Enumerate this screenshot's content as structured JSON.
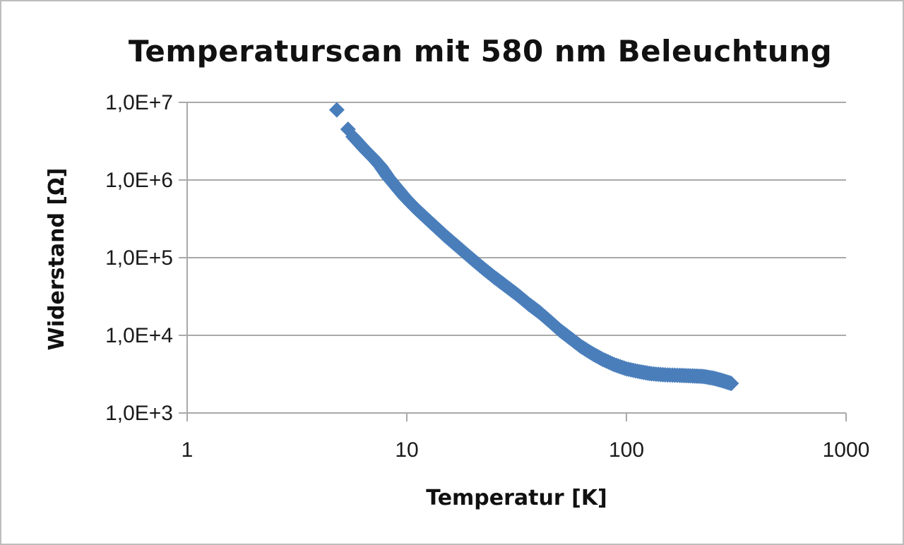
{
  "chart_data": {
    "type": "scatter",
    "title": "Temperaturscan  mit 580 nm Beleuchtung",
    "xlabel": "Temperatur [K]",
    "ylabel": "Widerstand [Ω]",
    "x_scale": "log",
    "y_scale": "log",
    "xlim": [
      1,
      1000
    ],
    "ylim": [
      1000,
      10000000
    ],
    "x_ticks": [
      1,
      10,
      100,
      1000
    ],
    "x_tick_labels": [
      "1",
      "10",
      "100",
      "1000"
    ],
    "y_ticks": [
      1000,
      10000,
      100000,
      1000000,
      10000000
    ],
    "y_tick_labels": [
      "1,0E+3",
      "1,0E+4",
      "1,0E+5",
      "1,0E+6",
      "1,0E+7"
    ],
    "grid": "horizontal",
    "legend": "none",
    "series": [
      {
        "color": "#4a7ebb",
        "marker": "diamond",
        "points": [
          [
            4.8,
            8000000
          ],
          [
            5.4,
            4500000
          ],
          [
            5.7,
            3600000
          ],
          [
            6.5,
            2400000
          ],
          [
            7.0,
            1950000
          ],
          [
            7.6,
            1500000
          ],
          [
            8.2,
            1100000
          ],
          [
            9.0,
            800000
          ],
          [
            9.8,
            600000
          ],
          [
            10.8,
            450000
          ],
          [
            12.0,
            340000
          ],
          [
            13.5,
            250000
          ],
          [
            15.0,
            190000
          ],
          [
            17.0,
            140000
          ],
          [
            19.5,
            100000
          ],
          [
            22.0,
            75000
          ],
          [
            25.0,
            56000
          ],
          [
            28.0,
            44000
          ],
          [
            32.0,
            33000
          ],
          [
            36.0,
            25000
          ],
          [
            40.0,
            20000
          ],
          [
            45.0,
            15000
          ],
          [
            50.0,
            11500
          ],
          [
            56.0,
            9000
          ],
          [
            62.0,
            7200
          ],
          [
            70.0,
            5800
          ],
          [
            78.0,
            4900
          ],
          [
            88.0,
            4200
          ],
          [
            100.0,
            3700
          ],
          [
            115.0,
            3400
          ],
          [
            130.0,
            3200
          ],
          [
            150.0,
            3100
          ],
          [
            175.0,
            3050
          ],
          [
            200.0,
            3000
          ],
          [
            225.0,
            2950
          ],
          [
            250.0,
            2800
          ],
          [
            275.0,
            2600
          ],
          [
            300.0,
            2400
          ]
        ]
      }
    ]
  }
}
